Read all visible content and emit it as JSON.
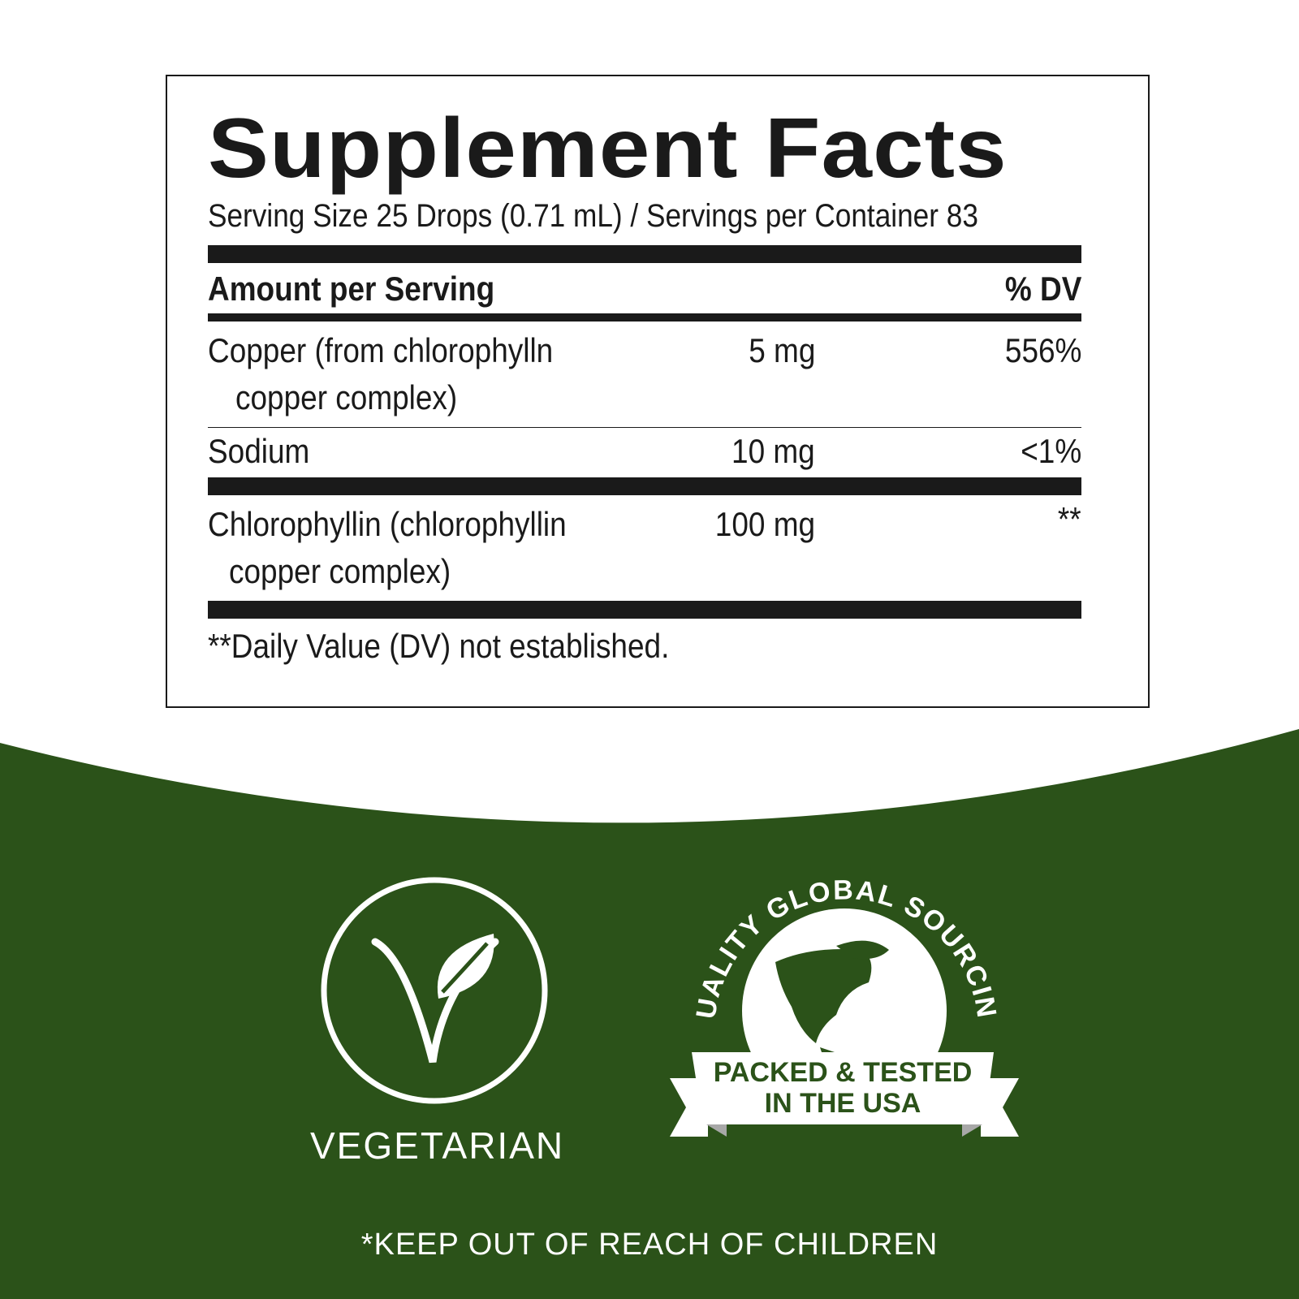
{
  "label": {
    "title": "Supplement Facts",
    "serving": "Serving Size 25 Drops (0.71 mL) / Servings per Container 83",
    "header_amount": "Amount per Serving",
    "header_dv": "% DV",
    "rows": [
      {
        "name_line1": "Copper (from chlorophylln",
        "name_line2": "copper complex)",
        "amount": "5 mg",
        "dv": "556%"
      },
      {
        "name_line1": "Sodium",
        "amount": "10 mg",
        "dv": "<1%"
      },
      {
        "name_line1": "Chlorophyllin (chlorophyllin",
        "name_line2": "copper complex)",
        "amount": "100 mg",
        "dv": "**"
      }
    ],
    "footnote": "**Daily Value (DV) not established."
  },
  "badges": {
    "vegetarian": {
      "label": "VEGETARIAN",
      "icon": "leaf-v-icon"
    },
    "sourcing": {
      "arc_text": "QUALITY GLOBAL SOURCING",
      "banner_line1": "PACKED & TESTED",
      "banner_line2": "IN THE USA",
      "icon": "globe-icon"
    }
  },
  "warning": "*KEEP OUT OF REACH OF CHILDREN",
  "colors": {
    "green": "#2b5219",
    "text": "#1a1a1a"
  }
}
